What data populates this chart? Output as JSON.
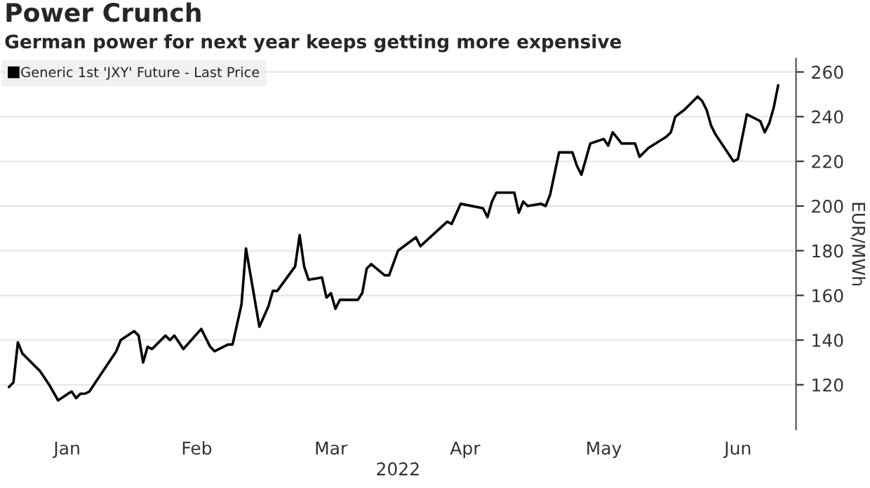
{
  "chart_data": {
    "type": "line",
    "title": "Power Crunch",
    "subtitle": "German power for next year keeps getting more expensive",
    "xlabel": "2022",
    "ylabel": "EUR/MWh",
    "x": [
      "2022-01-03",
      "2022-01-04",
      "2022-01-05",
      "2022-01-06",
      "2022-01-07",
      "2022-01-10",
      "2022-01-12",
      "2022-01-14",
      "2022-01-17",
      "2022-01-18",
      "2022-01-19",
      "2022-01-20",
      "2022-01-21",
      "2022-01-26",
      "2022-01-27",
      "2022-01-28",
      "2022-01-31",
      "2022-02-01",
      "2022-02-02",
      "2022-02-03",
      "2022-02-04",
      "2022-02-07",
      "2022-02-08",
      "2022-02-09",
      "2022-02-11",
      "2022-02-15",
      "2022-02-17",
      "2022-02-18",
      "2022-02-21",
      "2022-02-22",
      "2022-02-24",
      "2022-02-25",
      "2022-02-28",
      "2022-03-02",
      "2022-03-03",
      "2022-03-04",
      "2022-03-08",
      "2022-03-09",
      "2022-03-10",
      "2022-03-11",
      "2022-03-14",
      "2022-03-15",
      "2022-03-16",
      "2022-03-17",
      "2022-03-18",
      "2022-03-22",
      "2022-03-23",
      "2022-03-24",
      "2022-03-25",
      "2022-03-28",
      "2022-03-29",
      "2022-03-31",
      "2022-04-04",
      "2022-04-05",
      "2022-04-11",
      "2022-04-12",
      "2022-04-14",
      "2022-04-19",
      "2022-04-20",
      "2022-04-21",
      "2022-04-22",
      "2022-04-26",
      "2022-04-27",
      "2022-04-28",
      "2022-04-29",
      "2022-05-02",
      "2022-05-03",
      "2022-05-04",
      "2022-05-06",
      "2022-05-09",
      "2022-05-10",
      "2022-05-11",
      "2022-05-13",
      "2022-05-16",
      "2022-05-17",
      "2022-05-18",
      "2022-05-20",
      "2022-05-23",
      "2022-05-24",
      "2022-05-26",
      "2022-05-30",
      "2022-05-31",
      "2022-06-01",
      "2022-06-03",
      "2022-06-06",
      "2022-06-07",
      "2022-06-08",
      "2022-06-09",
      "2022-06-10",
      "2022-06-14",
      "2022-06-15",
      "2022-06-17",
      "2022-06-20",
      "2022-06-21",
      "2022-06-22",
      "2022-06-23",
      "2022-06-24"
    ],
    "series": [
      {
        "name": "Generic 1st 'JXY' Future - Last Price",
        "color": "#000000",
        "values": [
          119,
          121,
          139,
          134,
          132,
          126,
          120,
          113,
          117,
          114,
          116,
          116,
          117,
          132,
          135,
          140,
          144,
          142,
          130,
          137,
          136,
          142,
          140,
          142,
          136,
          145,
          137,
          135,
          138,
          138,
          156,
          181,
          146,
          155,
          162,
          162,
          173,
          187,
          173,
          167,
          168,
          159,
          161,
          154,
          158,
          158,
          161,
          172,
          174,
          169,
          169,
          180,
          186,
          182,
          193,
          192,
          201,
          199,
          195,
          202,
          206,
          206,
          197,
          202,
          200,
          201,
          200,
          205,
          224,
          224,
          218,
          214,
          228,
          230,
          227,
          233,
          228,
          228,
          222,
          226,
          231,
          233,
          240,
          243,
          249,
          247,
          243,
          236,
          232,
          220,
          221,
          241,
          238,
          233,
          237,
          244,
          254
        ]
      }
    ],
    "xlim": [
      "2022-01-01",
      "2022-06-28"
    ],
    "xticks": [
      {
        "value": "2022-01-16",
        "label": "Jan"
      },
      {
        "value": "2022-02-14",
        "label": "Feb"
      },
      {
        "value": "2022-03-16",
        "label": "Mar"
      },
      {
        "value": "2022-04-15",
        "label": "Apr"
      },
      {
        "value": "2022-05-16",
        "label": "May"
      },
      {
        "value": "2022-06-15",
        "label": "Jun"
      }
    ],
    "ylim": [
      100,
      266
    ],
    "yticks": [
      120,
      140,
      160,
      180,
      200,
      220,
      240,
      260
    ],
    "grid": "y",
    "legend": "top left",
    "line_style": "solid",
    "marker": "none"
  }
}
